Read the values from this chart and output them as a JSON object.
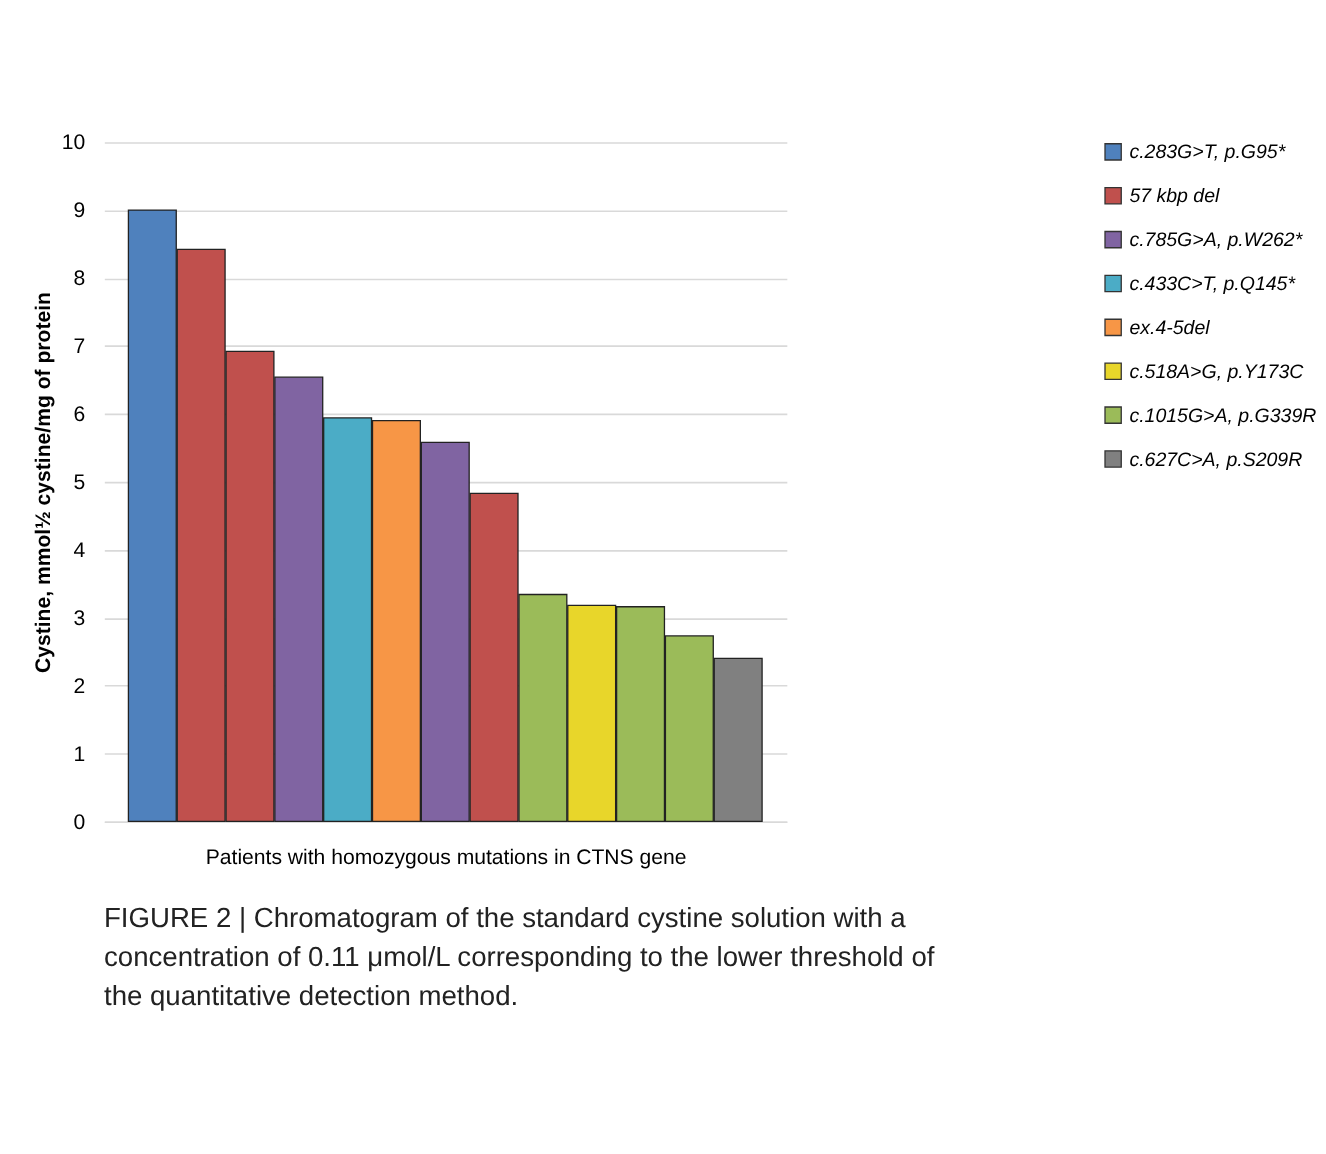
{
  "chart_data": {
    "type": "bar",
    "ylabel": "Cystine, mmol½ cystine/mg of protein",
    "xlabel": "Patients with homozygous mutations in CTNS gene",
    "categories": [
      null,
      null,
      null,
      null,
      null,
      null,
      null,
      null,
      null,
      null,
      null,
      null,
      null
    ],
    "series": [
      {
        "name": "c.283G>T, p.G95*",
        "color": "#4f81bd",
        "values": [
          9.0,
          null,
          null,
          null,
          null,
          null,
          null,
          null,
          null,
          null,
          null,
          null,
          null
        ]
      },
      {
        "name": "57 kbp del",
        "color": "#c0504d",
        "values": [
          null,
          8.42,
          6.92,
          null,
          null,
          null,
          null,
          4.83,
          null,
          null,
          null,
          null,
          null
        ]
      },
      {
        "name": "c.785G>A, p.W262*",
        "color": "#8064a2",
        "values": [
          null,
          null,
          null,
          6.54,
          null,
          null,
          5.58,
          null,
          null,
          null,
          null,
          null,
          null
        ]
      },
      {
        "name": "c.433C>T, p.Q145*",
        "color": "#4bacc6",
        "values": [
          null,
          null,
          null,
          null,
          5.94,
          null,
          null,
          null,
          null,
          null,
          null,
          null,
          null
        ]
      },
      {
        "name": "ex.4-5del",
        "color": "#f79646",
        "values": [
          null,
          null,
          null,
          null,
          null,
          5.9,
          null,
          null,
          null,
          null,
          null,
          null,
          null
        ]
      },
      {
        "name": "c.518A>G, p.Y173C",
        "color": "#e8d62a",
        "values": [
          null,
          null,
          null,
          null,
          null,
          null,
          null,
          null,
          null,
          3.18,
          null,
          null,
          null
        ]
      },
      {
        "name": "c.1015G>A, p.G339R",
        "color": "#9bbb59",
        "values": [
          null,
          null,
          null,
          null,
          null,
          null,
          null,
          null,
          3.34,
          null,
          3.16,
          2.73,
          null
        ]
      },
      {
        "name": "c.627C>A, p.S209R",
        "color": "#808080",
        "values": [
          null,
          null,
          null,
          null,
          null,
          null,
          null,
          null,
          null,
          null,
          null,
          null,
          2.4
        ]
      }
    ],
    "ylim": [
      0,
      10
    ],
    "yticks": [
      0,
      1,
      2,
      3,
      4,
      5,
      6,
      7,
      8,
      9,
      10
    ],
    "grid": "y",
    "legend": "right",
    "annotations": [
      "FIGURE 2 | Chromatogram of the standard cystine solution with a concentration of 0.11 μmol/L corresponding to the lower threshold of the quantitative detection method."
    ]
  }
}
